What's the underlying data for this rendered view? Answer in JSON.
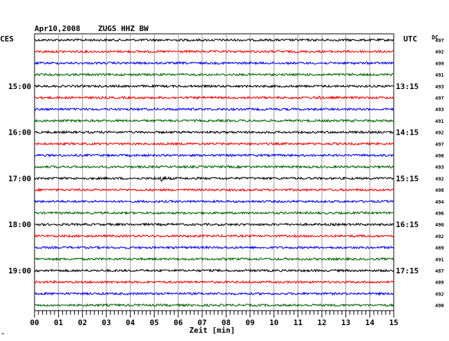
{
  "header": {
    "date": "Apr10,2008",
    "station": "ZUGS HHZ BW",
    "left_zone": "CES",
    "right_zone": "UTC",
    "dc_label": "DC"
  },
  "chart_data": {
    "type": "line",
    "title": "Apr10,2008 ZUGS HHZ BW",
    "xlabel": "Zeit [min]",
    "xlim": [
      0,
      15
    ],
    "x_ticks": [
      "00",
      "01",
      "02",
      "03",
      "04",
      "05",
      "06",
      "07",
      "08",
      "09",
      "10",
      "11",
      "12",
      "13",
      "14",
      "15"
    ],
    "row_colors": [
      "#000000",
      "#ff0000",
      "#0000ff",
      "#006400"
    ],
    "rows": 24,
    "left_time_labels": [
      {
        "row": 4,
        "text": "15:00"
      },
      {
        "row": 8,
        "text": "16:00"
      },
      {
        "row": 12,
        "text": "17:00"
      },
      {
        "row": 16,
        "text": "18:00"
      },
      {
        "row": 20,
        "text": "19:00"
      }
    ],
    "right_time_labels": [
      {
        "row": 4,
        "text": "13:15"
      },
      {
        "row": 8,
        "text": "14:15"
      },
      {
        "row": 12,
        "text": "15:15"
      },
      {
        "row": 16,
        "text": "16:15"
      },
      {
        "row": 20,
        "text": "17:15"
      }
    ],
    "dc_values": [
      "497",
      "492",
      "499",
      "491",
      "493",
      "497",
      "493",
      "491",
      "492",
      "497",
      "490",
      "493",
      "492",
      "498",
      "494",
      "496",
      "490",
      "492",
      "489",
      "491",
      "487",
      "489",
      "492",
      "490"
    ],
    "events": [
      {
        "row": 12,
        "minute": 5.3,
        "amplitude": 3.0
      },
      {
        "row": 5,
        "minute": 11.8,
        "amplitude": 1.6
      }
    ],
    "grid": true
  },
  "footer": {
    "corner_mark": "^"
  }
}
